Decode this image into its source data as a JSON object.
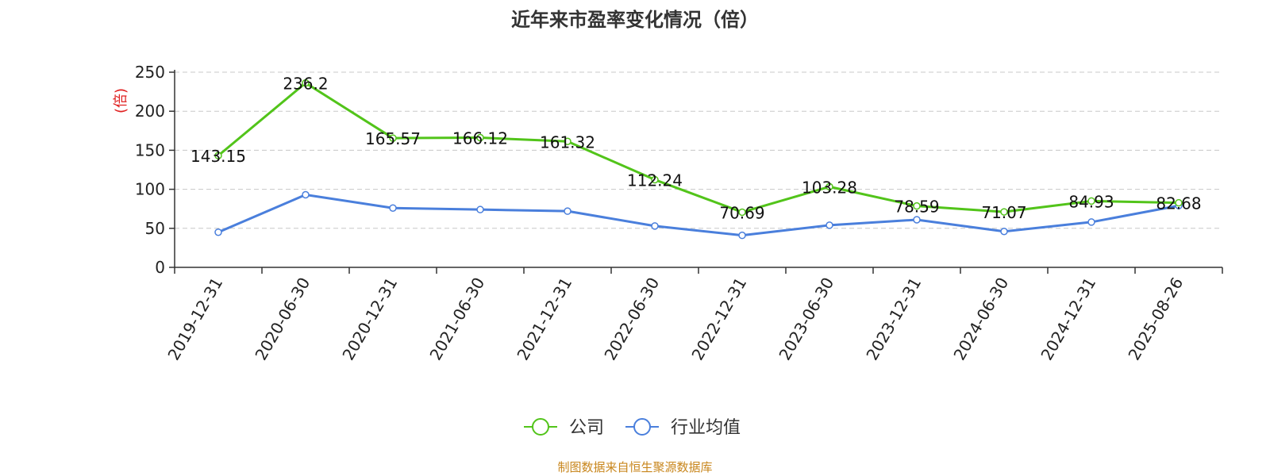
{
  "chart_data": {
    "type": "line",
    "title": "近年来市盈率变化情况（倍）",
    "ylabel": "(倍)",
    "xlabel": "",
    "categories": [
      "2019-12-31",
      "2020-06-30",
      "2020-12-31",
      "2021-06-30",
      "2021-12-31",
      "2022-06-30",
      "2022-12-31",
      "2023-06-30",
      "2023-12-31",
      "2024-06-30",
      "2024-12-31",
      "2025-08-26"
    ],
    "series": [
      {
        "name": "公司",
        "color": "#52c41a",
        "values": [
          143.15,
          236.2,
          165.57,
          166.12,
          161.32,
          112.24,
          70.69,
          103.28,
          78.59,
          71.07,
          84.93,
          82.68
        ],
        "labels": [
          "143.15",
          "236.2",
          "165.57",
          "166.12",
          "161.32",
          "112.24",
          "70.69",
          "103.28",
          "78.59",
          "71.07",
          "84.93",
          "82.68"
        ]
      },
      {
        "name": "行业均值",
        "color": "#4a7fdc",
        "values": [
          45,
          93,
          76,
          74,
          72,
          53,
          41,
          54,
          61,
          46,
          58,
          79
        ]
      }
    ],
    "yticks": [
      "0",
      "50",
      "100",
      "150",
      "200",
      "250"
    ],
    "ylim": [
      0,
      250
    ],
    "grid": true,
    "legend_position": "bottom-center",
    "ylabel_color": "#e02020"
  },
  "footer": {
    "source": "制图数据来自恒生聚源数据库",
    "color": "#c8861c"
  }
}
